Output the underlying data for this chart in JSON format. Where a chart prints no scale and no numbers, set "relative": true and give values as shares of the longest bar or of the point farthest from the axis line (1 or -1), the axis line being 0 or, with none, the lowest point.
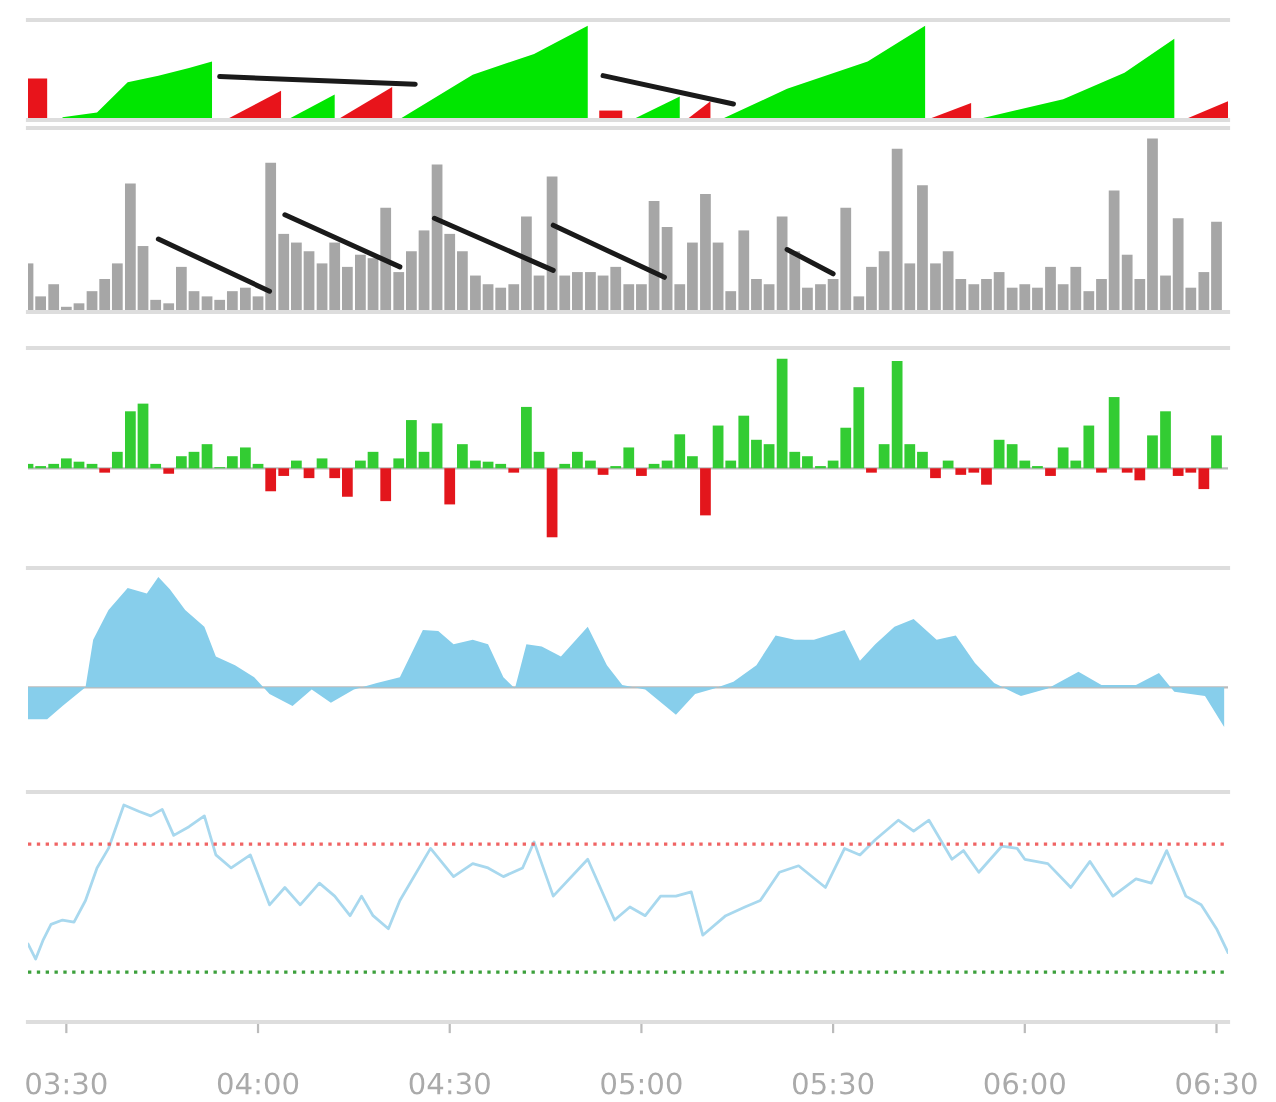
{
  "chart_data": [
    {
      "type": "area",
      "relative": true,
      "xlim": [
        3.4,
        6.53
      ],
      "tick_labels": false,
      "series": [
        {
          "color": "#00e600",
          "x": [
            3.49,
            3.58,
            3.66,
            3.74,
            3.82,
            3.88,
            3.9,
            4.08,
            4.2,
            4.21,
            4.37,
            4.56,
            4.72,
            4.86,
            4.9,
            4.98,
            5.1,
            5.15,
            5.21,
            5.38,
            5.59,
            5.74,
            5.8,
            5.88,
            6.1,
            6.26,
            6.39
          ],
          "values": [
            0.03,
            0.08,
            0.4,
            0.47,
            0.55,
            0.62,
            null,
            0.01,
            0.27,
            null,
            0.01,
            0.48,
            0.7,
            1.0,
            null,
            0.01,
            0.25,
            null,
            0.01,
            0.33,
            0.62,
            1.0,
            null,
            0.01,
            0.22,
            0.5,
            0.86
          ]
        },
        {
          "color": "#e8141b",
          "x": [
            3.4,
            3.45,
            3.47,
            3.92,
            4.06,
            4.1,
            4.21,
            4.35,
            4.36,
            4.89,
            4.95,
            4.96,
            5.12,
            5.18,
            5.19,
            5.75,
            5.86,
            5.87,
            6.42,
            6.53
          ],
          "values": [
            0.44,
            0.44,
            null,
            0.01,
            0.31,
            null,
            0.01,
            0.35,
            null,
            0.1,
            0.1,
            null,
            0.01,
            0.2,
            null,
            0.01,
            0.18,
            null,
            0.01,
            0.2
          ]
        },
        {
          "type": "line",
          "color": "#1a1a1a",
          "x": [
            3.9,
            4.41
          ],
          "values": [
            0.46,
            0.38
          ]
        },
        {
          "type": "line",
          "color": "#1a1a1a",
          "x": [
            4.9,
            5.24
          ],
          "values": [
            0.47,
            0.17
          ]
        }
      ]
    },
    {
      "type": "bar",
      "relative": true,
      "xlim": [
        3.4,
        6.53
      ],
      "tick_labels": false,
      "x": [
        3.4,
        3.433,
        3.467,
        3.5,
        3.533,
        3.567,
        3.6,
        3.633,
        3.667,
        3.7,
        3.733,
        3.767,
        3.8,
        3.833,
        3.867,
        3.9,
        3.933,
        3.967,
        4.0,
        4.033,
        4.067,
        4.1,
        4.133,
        4.167,
        4.2,
        4.233,
        4.267,
        4.3,
        4.333,
        4.367,
        4.4,
        4.433,
        4.467,
        4.5,
        4.533,
        4.567,
        4.6,
        4.633,
        4.667,
        4.7,
        4.733,
        4.767,
        4.8,
        4.833,
        4.867,
        4.9,
        4.933,
        4.967,
        5.0,
        5.033,
        5.067,
        5.1,
        5.133,
        5.167,
        5.2,
        5.233,
        5.267,
        5.3,
        5.333,
        5.367,
        5.4,
        5.433,
        5.467,
        5.5,
        5.533,
        5.567,
        5.6,
        5.633,
        5.667,
        5.7,
        5.733,
        5.767,
        5.8,
        5.833,
        5.867,
        5.9,
        5.933,
        5.967,
        6.0,
        6.033,
        6.067,
        6.1,
        6.133,
        6.167,
        6.2,
        6.233,
        6.267,
        6.3,
        6.333,
        6.367,
        6.4,
        6.433,
        6.467,
        6.5
      ],
      "series": [
        {
          "color": "#a6a6a6",
          "values": [
            0.28,
            0.09,
            0.16,
            0.03,
            0.05,
            0.12,
            0.19,
            0.28,
            0.74,
            0.38,
            0.07,
            0.05,
            0.26,
            0.12,
            0.09,
            0.07,
            0.12,
            0.14,
            0.09,
            0.86,
            0.45,
            0.4,
            0.35,
            0.28,
            0.4,
            0.26,
            0.33,
            0.31,
            0.6,
            0.23,
            0.35,
            0.47,
            0.85,
            0.45,
            0.35,
            0.21,
            0.16,
            0.14,
            0.16,
            0.55,
            0.21,
            0.78,
            0.21,
            0.23,
            0.23,
            0.21,
            0.26,
            0.16,
            0.16,
            0.64,
            0.49,
            0.16,
            0.4,
            0.68,
            0.4,
            0.12,
            0.47,
            0.19,
            0.16,
            0.55,
            0.35,
            0.14,
            0.16,
            0.19,
            0.6,
            0.09,
            0.26,
            0.35,
            0.94,
            0.28,
            0.73,
            0.28,
            0.35,
            0.19,
            0.16,
            0.19,
            0.23,
            0.14,
            0.16,
            0.14,
            0.26,
            0.16,
            0.26,
            0.12,
            0.19,
            0.7,
            0.33,
            0.19,
            1.0,
            0.21,
            0.54,
            0.14,
            0.23,
            0.52
          ]
        },
        {
          "type": "line",
          "color": "#1a1a1a",
          "x": [
            3.74,
            4.03
          ],
          "values": [
            0.42,
            0.12
          ]
        },
        {
          "type": "line",
          "color": "#1a1a1a",
          "x": [
            4.07,
            4.37
          ],
          "values": [
            0.56,
            0.26
          ]
        },
        {
          "type": "line",
          "color": "#1a1a1a",
          "x": [
            4.46,
            4.77
          ],
          "values": [
            0.54,
            0.24
          ]
        },
        {
          "type": "line",
          "color": "#1a1a1a",
          "x": [
            4.77,
            5.06
          ],
          "values": [
            0.5,
            0.2
          ]
        },
        {
          "type": "line",
          "color": "#1a1a1a",
          "x": [
            5.38,
            5.5
          ],
          "values": [
            0.36,
            0.22
          ]
        }
      ]
    },
    {
      "type": "bar",
      "relative": true,
      "xlim": [
        3.4,
        6.53
      ],
      "tick_labels": false,
      "x": [
        3.4,
        3.433,
        3.467,
        3.5,
        3.533,
        3.567,
        3.6,
        3.633,
        3.667,
        3.7,
        3.733,
        3.767,
        3.8,
        3.833,
        3.867,
        3.9,
        3.933,
        3.967,
        4.0,
        4.033,
        4.067,
        4.1,
        4.133,
        4.167,
        4.2,
        4.233,
        4.267,
        4.3,
        4.333,
        4.367,
        4.4,
        4.433,
        4.467,
        4.5,
        4.533,
        4.567,
        4.6,
        4.633,
        4.667,
        4.7,
        4.733,
        4.767,
        4.8,
        4.833,
        4.867,
        4.9,
        4.933,
        4.967,
        5.0,
        5.033,
        5.067,
        5.1,
        5.133,
        5.167,
        5.2,
        5.233,
        5.267,
        5.3,
        5.333,
        5.367,
        5.4,
        5.433,
        5.467,
        5.5,
        5.533,
        5.567,
        5.6,
        5.633,
        5.667,
        5.7,
        5.733,
        5.767,
        5.8,
        5.833,
        5.867,
        5.9,
        5.933,
        5.967,
        6.0,
        6.033,
        6.067,
        6.1,
        6.133,
        6.167,
        6.2,
        6.233,
        6.267,
        6.3,
        6.333,
        6.367,
        6.4,
        6.433,
        6.467,
        6.5
      ],
      "series": [
        {
          "color": "#33cc33",
          "values": [
            0.04,
            0.02,
            0.04,
            0.09,
            0.06,
            0.04,
            null,
            0.15,
            0.52,
            0.59,
            0.04,
            null,
            0.11,
            0.15,
            0.22,
            0.01,
            0.11,
            0.19,
            0.04,
            null,
            null,
            0.07,
            null,
            0.09,
            null,
            null,
            0.07,
            0.15,
            null,
            0.09,
            0.44,
            0.15,
            0.41,
            null,
            0.22,
            0.07,
            0.06,
            0.04,
            null,
            0.56,
            0.15,
            null,
            0.04,
            0.15,
            0.07,
            null,
            0.02,
            0.19,
            null,
            0.04,
            0.07,
            0.31,
            0.11,
            null,
            0.39,
            0.07,
            0.48,
            0.26,
            0.22,
            1.0,
            0.15,
            0.11,
            0.02,
            0.07,
            0.37,
            0.74,
            null,
            0.22,
            0.98,
            0.22,
            0.15,
            null,
            0.07,
            null,
            null,
            null,
            0.26,
            0.22,
            0.07,
            0.02,
            null,
            0.19,
            0.07,
            0.39,
            null,
            0.65,
            null,
            null,
            0.3,
            0.52,
            null,
            null,
            null,
            0.3
          ]
        },
        {
          "color": "#e3161c",
          "values": [
            null,
            null,
            null,
            null,
            null,
            null,
            -0.04,
            null,
            null,
            null,
            null,
            -0.05,
            null,
            null,
            null,
            null,
            null,
            null,
            null,
            -0.21,
            -0.07,
            null,
            -0.09,
            null,
            -0.09,
            -0.26,
            null,
            null,
            -0.3,
            null,
            null,
            null,
            null,
            -0.33,
            null,
            null,
            null,
            null,
            -0.04,
            null,
            null,
            -0.63,
            null,
            null,
            null,
            -0.06,
            null,
            null,
            -0.07,
            null,
            null,
            null,
            null,
            -0.43,
            null,
            null,
            null,
            null,
            null,
            null,
            null,
            null,
            null,
            null,
            null,
            null,
            -0.04,
            null,
            null,
            null,
            null,
            -0.09,
            null,
            -0.06,
            -0.04,
            -0.15,
            null,
            null,
            null,
            null,
            -0.07,
            null,
            null,
            null,
            -0.04,
            null,
            -0.04,
            -0.11,
            null,
            null,
            -0.07,
            -0.04,
            -0.19,
            null
          ]
        }
      ]
    },
    {
      "type": "area",
      "relative": true,
      "xlim": [
        3.4,
        6.53
      ],
      "tick_labels": false,
      "series": [
        {
          "color": "#87ceeb",
          "x": [
            3.4,
            3.45,
            3.49,
            3.55,
            3.57,
            3.61,
            3.66,
            3.71,
            3.74,
            3.77,
            3.81,
            3.86,
            3.89,
            3.94,
            3.99,
            4.03,
            4.09,
            4.14,
            4.19,
            4.25,
            4.31,
            4.37,
            4.43,
            4.47,
            4.51,
            4.56,
            4.6,
            4.64,
            4.67,
            4.7,
            4.74,
            4.79,
            4.86,
            4.91,
            4.95,
            5.01,
            5.09,
            5.14,
            5.19,
            5.24,
            5.3,
            5.35,
            5.4,
            5.45,
            5.53,
            5.57,
            5.61,
            5.66,
            5.71,
            5.77,
            5.82,
            5.87,
            5.92,
            5.99,
            6.06,
            6.14,
            6.2,
            6.29,
            6.35,
            6.39,
            6.47,
            6.52
          ],
          "values": [
            -0.29,
            -0.29,
            -0.17,
            0,
            0.43,
            0.7,
            0.9,
            0.85,
            1.0,
            0.89,
            0.7,
            0.55,
            0.28,
            0.2,
            0.09,
            -0.06,
            -0.17,
            -0.02,
            -0.14,
            -0.02,
            0.04,
            0.09,
            0.52,
            0.51,
            0.39,
            0.43,
            0.39,
            0.09,
            -0.01,
            0.39,
            0.37,
            0.28,
            0.55,
            0.2,
            0.02,
            -0.02,
            -0.25,
            -0.06,
            -0.01,
            0.05,
            0.2,
            0.47,
            0.43,
            0.43,
            0.52,
            0.24,
            0.39,
            0.55,
            0.62,
            0.43,
            0.47,
            0.22,
            0.04,
            -0.08,
            -0.01,
            0.14,
            0.02,
            0.02,
            0.13,
            -0.04,
            -0.08,
            -0.36
          ]
        }
      ]
    },
    {
      "type": "line",
      "relative": true,
      "xlim": [
        3.4,
        6.53
      ],
      "tick_labels": "x",
      "xticks": [
        {
          "value": 3.5,
          "label": "03:30"
        },
        {
          "value": 4.0,
          "label": "04:00"
        },
        {
          "value": 4.5,
          "label": "04:30"
        },
        {
          "value": 5.0,
          "label": "05:00"
        },
        {
          "value": 5.5,
          "label": "05:30"
        },
        {
          "value": 6.0,
          "label": "06:00"
        },
        {
          "value": 6.5,
          "label": "06:30"
        }
      ],
      "ref_lines": [
        {
          "axis": "y",
          "value": 0.82,
          "color": "#f06464",
          "line_style": "dotted"
        },
        {
          "axis": "y",
          "value": 0.23,
          "color": "#3ca03c",
          "line_style": "dotted"
        }
      ],
      "series": [
        {
          "color": "#a8d8ee",
          "x": [
            3.4,
            3.42,
            3.44,
            3.46,
            3.49,
            3.52,
            3.55,
            3.58,
            3.61,
            3.65,
            3.69,
            3.72,
            3.75,
            3.78,
            3.82,
            3.86,
            3.89,
            3.93,
            3.98,
            4.03,
            4.07,
            4.11,
            4.16,
            4.2,
            4.24,
            4.27,
            4.3,
            4.34,
            4.37,
            4.45,
            4.51,
            4.56,
            4.6,
            4.64,
            4.69,
            4.72,
            4.77,
            4.86,
            4.93,
            4.97,
            5.01,
            5.05,
            5.09,
            5.13,
            5.16,
            5.22,
            5.27,
            5.31,
            5.36,
            5.41,
            5.48,
            5.53,
            5.57,
            5.61,
            5.67,
            5.71,
            5.75,
            5.81,
            5.84,
            5.88,
            5.94,
            5.98,
            6.0,
            6.06,
            6.12,
            6.17,
            6.23,
            6.29,
            6.33,
            6.37,
            6.42,
            6.46,
            6.5,
            6.53
          ],
          "values": [
            0.36,
            0.29,
            0.38,
            0.45,
            0.47,
            0.46,
            0.56,
            0.71,
            0.8,
            1.0,
            0.97,
            0.95,
            0.98,
            0.86,
            0.9,
            0.95,
            0.77,
            0.71,
            0.77,
            0.54,
            0.62,
            0.54,
            0.64,
            0.58,
            0.49,
            0.58,
            0.49,
            0.43,
            0.56,
            0.8,
            0.67,
            0.73,
            0.71,
            0.67,
            0.71,
            0.83,
            0.58,
            0.75,
            0.47,
            0.53,
            0.49,
            0.58,
            0.58,
            0.6,
            0.4,
            0.49,
            0.53,
            0.56,
            0.69,
            0.72,
            0.62,
            0.8,
            0.77,
            0.84,
            0.93,
            0.88,
            0.93,
            0.75,
            0.79,
            0.69,
            0.81,
            0.8,
            0.75,
            0.73,
            0.62,
            0.74,
            0.58,
            0.66,
            0.64,
            0.79,
            0.58,
            0.54,
            0.43,
            0.32
          ]
        }
      ]
    }
  ]
}
